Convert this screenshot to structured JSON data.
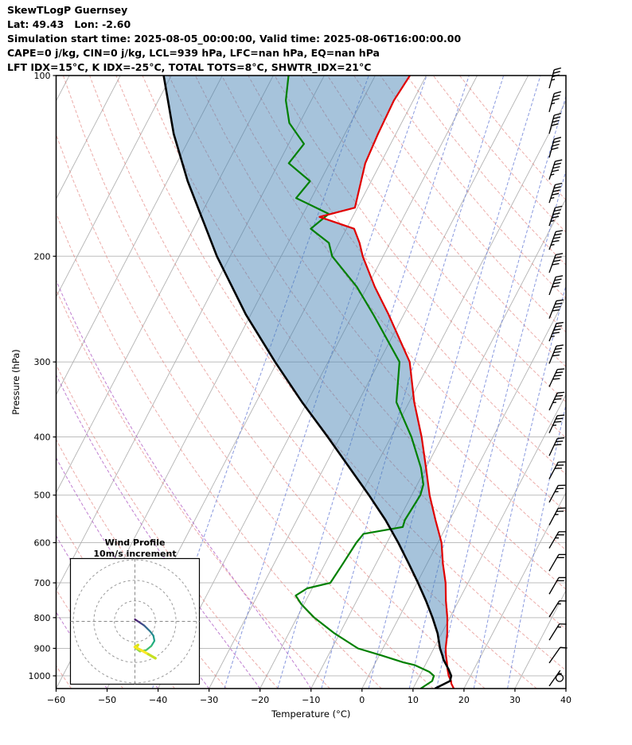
{
  "header": {
    "title": "SkewTLogP Guernsey",
    "latlon": "Lat: 49.43   Lon: -2.60",
    "times": "Simulation start time: 2025-08-05_00:00:00, Valid time: 2025-08-06T16:00:00.00",
    "stability1": "CAPE=0 j/kg, CIN=0 j/kg, LCL=939 hPa, LFC=nan hPa, EQ=nan hPa",
    "stability2": "LFT IDX=15°C, K IDX=-25°C, TOTAL TOTS=8°C, SHWTR_IDX=21°C"
  },
  "chart_data": {
    "type": "line",
    "variant": "skew-t-log-p",
    "title": "SkewTLogP Guernsey",
    "xlabel": "Temperature (°C)",
    "ylabel": "Pressure (hPa)",
    "x_ticks": [
      -60,
      -50,
      -40,
      -30,
      -20,
      -10,
      0,
      10,
      20,
      30,
      40
    ],
    "p_ticks": [
      100,
      200,
      300,
      400,
      500,
      600,
      700,
      800,
      900,
      1000
    ],
    "temp_range": [
      -60,
      40
    ],
    "pressure_range": [
      100,
      1050
    ],
    "skew": 0.52,
    "grid": true,
    "series": [
      {
        "name": "temperature",
        "color": "#e00000",
        "width": 2.2,
        "points": [
          [
            1050,
            18.0
          ],
          [
            1030,
            17.0
          ],
          [
            1020,
            16.7
          ],
          [
            1000,
            15.7
          ],
          [
            975,
            14.8
          ],
          [
            950,
            14.0
          ],
          [
            925,
            13.1
          ],
          [
            900,
            12.3
          ],
          [
            850,
            11.1
          ],
          [
            800,
            9.5
          ],
          [
            750,
            7.5
          ],
          [
            700,
            5.6
          ],
          [
            650,
            3.1
          ],
          [
            600,
            0.7
          ],
          [
            550,
            -2.8
          ],
          [
            500,
            -6.5
          ],
          [
            450,
            -10.0
          ],
          [
            400,
            -14.0
          ],
          [
            350,
            -19.0
          ],
          [
            300,
            -24.0
          ],
          [
            250,
            -33.0
          ],
          [
            225,
            -38.5
          ],
          [
            200,
            -44.0
          ],
          [
            190,
            -46.0
          ],
          [
            180,
            -48.5
          ],
          [
            172,
            -56.5
          ],
          [
            166,
            -50.5
          ],
          [
            155,
            -51.5
          ],
          [
            140,
            -53.0
          ],
          [
            125,
            -53.5
          ],
          [
            110,
            -53.8
          ],
          [
            100,
            -53.2
          ]
        ]
      },
      {
        "name": "dewpoint",
        "color": "#008000",
        "width": 2.2,
        "points": [
          [
            1050,
            11.5
          ],
          [
            1020,
            13.0
          ],
          [
            1000,
            12.8
          ],
          [
            985,
            11.5
          ],
          [
            960,
            8.0
          ],
          [
            950,
            5.5
          ],
          [
            925,
            0.5
          ],
          [
            900,
            -4.9
          ],
          [
            850,
            -11.0
          ],
          [
            800,
            -16.6
          ],
          [
            760,
            -20.5
          ],
          [
            735,
            -22.5
          ],
          [
            715,
            -21.0
          ],
          [
            700,
            -17.0
          ],
          [
            650,
            -16.5
          ],
          [
            600,
            -16.0
          ],
          [
            580,
            -15.5
          ],
          [
            565,
            -8.5
          ],
          [
            550,
            -8.8
          ],
          [
            500,
            -8.3
          ],
          [
            480,
            -8.8
          ],
          [
            450,
            -11.0
          ],
          [
            400,
            -16.0
          ],
          [
            350,
            -22.5
          ],
          [
            300,
            -26.0
          ],
          [
            250,
            -36.0
          ],
          [
            225,
            -42.0
          ],
          [
            200,
            -50.0
          ],
          [
            190,
            -52.0
          ],
          [
            180,
            -57.0
          ],
          [
            170,
            -55.0
          ],
          [
            160,
            -63.0
          ],
          [
            150,
            -62.0
          ],
          [
            140,
            -68.0
          ],
          [
            130,
            -67.0
          ],
          [
            120,
            -72.0
          ],
          [
            110,
            -75.0
          ],
          [
            100,
            -77.0
          ]
        ]
      },
      {
        "name": "parcel",
        "color": "#000000",
        "width": 2.6,
        "points": [
          [
            1050,
            14.3
          ],
          [
            1020,
            16.5
          ],
          [
            1000,
            16.2
          ],
          [
            975,
            15.0
          ],
          [
            950,
            13.6
          ],
          [
            939,
            13.0
          ],
          [
            925,
            12.4
          ],
          [
            900,
            11.2
          ],
          [
            850,
            9.2
          ],
          [
            800,
            6.6
          ],
          [
            750,
            3.6
          ],
          [
            700,
            0.2
          ],
          [
            650,
            -3.6
          ],
          [
            600,
            -7.8
          ],
          [
            550,
            -12.6
          ],
          [
            500,
            -18.4
          ],
          [
            450,
            -25.0
          ],
          [
            400,
            -32.4
          ],
          [
            350,
            -41.0
          ],
          [
            300,
            -50.4
          ],
          [
            250,
            -61.0
          ],
          [
            200,
            -72.6
          ],
          [
            150,
            -86.0
          ],
          [
            125,
            -93.6
          ],
          [
            100,
            -101.5
          ]
        ]
      }
    ],
    "shade": {
      "between": [
        "parcel",
        "temperature"
      ],
      "color": "#4682b4",
      "opacity": 0.48,
      "max_p": 1020
    },
    "background": {
      "isotherms": {
        "start": -160,
        "end": 40,
        "step": 10,
        "color": "#b3b3b3"
      },
      "pressure_gridline_color": "#bdbdbd",
      "dry_adiabats": {
        "start": -60,
        "end": 170,
        "step": 10,
        "color": "#e0756f"
      },
      "moist_adiabats": {
        "start": -60,
        "end": -10,
        "step": 10,
        "color": "#b05fc6"
      },
      "mixing_ratios": {
        "values": [
          0.1,
          0.4,
          1,
          2,
          4,
          7,
          10,
          16,
          24
        ],
        "color": "#6b7fd7"
      }
    },
    "wind_barbs": {
      "units": "kt",
      "levels_p_kt_dir": [
        [
          105,
          35,
          15
        ],
        [
          115,
          35,
          15
        ],
        [
          125,
          40,
          15
        ],
        [
          137,
          40,
          15
        ],
        [
          149,
          45,
          18
        ],
        [
          163,
          45,
          18
        ],
        [
          178,
          45,
          18
        ],
        [
          195,
          45,
          20
        ],
        [
          213,
          40,
          20
        ],
        [
          232,
          40,
          20
        ],
        [
          254,
          40,
          22
        ],
        [
          277,
          45,
          22
        ],
        [
          302,
          40,
          22
        ],
        [
          330,
          40,
          25
        ],
        [
          361,
          35,
          25
        ],
        [
          394,
          35,
          25
        ],
        [
          430,
          30,
          25
        ],
        [
          470,
          30,
          28
        ],
        [
          514,
          25,
          28
        ],
        [
          561,
          25,
          28
        ],
        [
          613,
          25,
          30
        ],
        [
          669,
          20,
          30
        ],
        [
          731,
          20,
          30
        ],
        [
          798,
          15,
          32
        ],
        [
          872,
          15,
          32
        ],
        [
          952,
          10,
          35
        ],
        [
          1040,
          5,
          35
        ]
      ],
      "calm": {
        "p": 1008,
        "kt": 0,
        "dx": 13
      }
    }
  },
  "hodograph": {
    "title_line1": "Wind Profile",
    "title_line2": "10m/s increment",
    "ring_increment_ms": 10,
    "rings_ms": [
      10,
      20,
      30
    ],
    "trace_u_v_color": [
      [
        0,
        1,
        "#440154"
      ],
      [
        1.5,
        0,
        "#481b6d"
      ],
      [
        3,
        -1,
        "#46327e"
      ],
      [
        4.5,
        -2,
        "#3f4889"
      ],
      [
        6,
        -3.5,
        "#355e8d"
      ],
      [
        7.5,
        -5,
        "#2d708e"
      ],
      [
        9,
        -7,
        "#25848e"
      ],
      [
        9.5,
        -9.5,
        "#1f978b"
      ],
      [
        8,
        -12,
        "#21ad80"
      ],
      [
        5.5,
        -14,
        "#3cbc74"
      ],
      [
        2.5,
        -14.5,
        "#5ec961"
      ],
      [
        0.5,
        -13,
        "#8bd646"
      ],
      [
        1.5,
        -11.5,
        "#b5dd2b"
      ],
      [
        0,
        -12.5,
        "#dae319"
      ],
      [
        3,
        -14,
        "#f4e61e"
      ],
      [
        6.5,
        -16,
        "#fde725"
      ],
      [
        10,
        -18,
        "#c6e020"
      ]
    ]
  }
}
